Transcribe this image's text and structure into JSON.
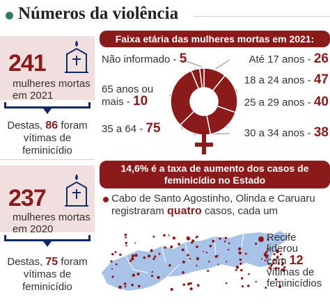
{
  "title": "Números da violência",
  "stats": [
    {
      "number": "241",
      "line1": "mulheres mortas",
      "line2": "em 2021",
      "desc1_prefix": "Destas,",
      "desc1_value": "86",
      "desc1_suffix": "foram",
      "desc2": "vítimas de",
      "desc3": "feminicídio"
    },
    {
      "number": "237",
      "line1": "mulheres mortas",
      "line2": "em 2020",
      "desc1_prefix": "Destas,",
      "desc1_value": "75",
      "desc1_suffix": "foram",
      "desc2": "vítimas de",
      "desc3": "feminicídio"
    }
  ],
  "age_banner": "Faixa etária das mulheres mortas em 2021:",
  "increase_banner_line1": "14,6% é a taxa de aumento dos casos de",
  "increase_banner_line2": "feminicídio no Estado",
  "cabo": {
    "line1": "Cabo de Santo Agostinho, Olinda e Caruaru",
    "line2_prefix": "registraram",
    "line2_value": "quatro",
    "line2_suffix": "casos, cada um"
  },
  "recife": {
    "line1": "Recife",
    "line2": "liderou",
    "line3_prefix": "com",
    "line3_value": "12",
    "line4": "vítimas de",
    "line5": "feminicídios"
  },
  "chart_data": {
    "type": "pie",
    "title": "Faixa etária das mulheres mortas em 2021:",
    "categories": [
      "Não informado",
      "65 anos ou mais",
      "35 a 64",
      "Até 17 anos",
      "18 a 24 anos",
      "25 a 29 anos",
      "30 a 34 anos"
    ],
    "category_lines": [
      [
        "Não informado -"
      ],
      [
        "65 anos ou",
        "mais -"
      ],
      [
        "35 a 64 -"
      ],
      [
        "Até 17 anos -"
      ],
      [
        "18 a 24 anos -"
      ],
      [
        "25 a 29 anos -"
      ],
      [
        "30 a 34 anos -"
      ]
    ],
    "values": [
      5,
      10,
      75,
      26,
      47,
      40,
      38
    ]
  },
  "colors": {
    "accent": "#8b1a1a",
    "navy": "#0f2a6b",
    "map": "#a9c3e8",
    "pink": "#f1dede"
  },
  "icons": [
    "candle-icon",
    "female-symbol-icon",
    "pernambuco-map-icon"
  ]
}
